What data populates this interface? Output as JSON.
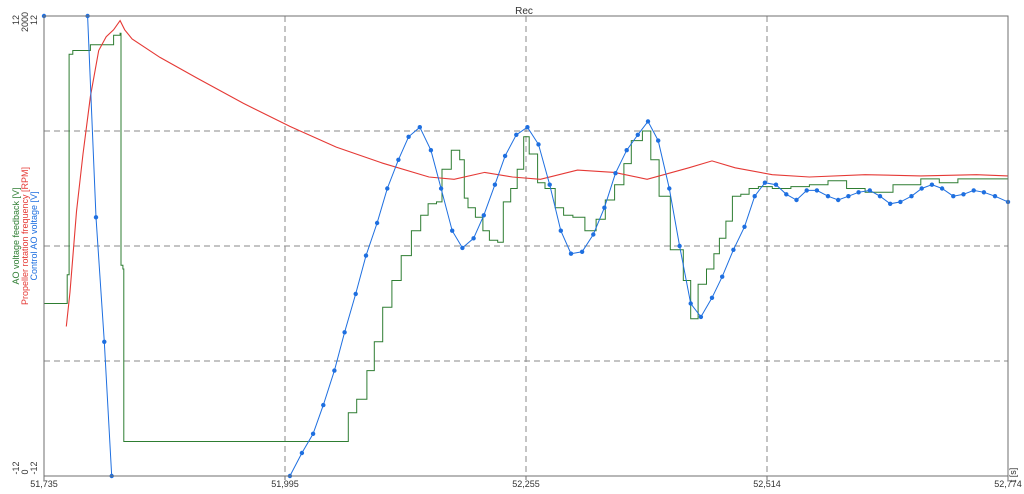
{
  "chart_data": {
    "type": "line",
    "title": "Rec",
    "xlabel": "t [s]",
    "xlim": [
      51.735,
      52.774
    ],
    "grid": true,
    "x_ticks": [
      "51,735",
      "51,995",
      "52,255",
      "52,514",
      "52,774"
    ],
    "y_axes": [
      {
        "label": "AO voltage feedback [V]",
        "color": "#2e7d32",
        "top": "12",
        "bottom": "-12",
        "range": [
          -12,
          12
        ]
      },
      {
        "label": "Propeller rotation frequency [RPM]",
        "color": "#e53935",
        "top": "2000",
        "bottom": "0",
        "range": [
          0,
          2000
        ]
      },
      {
        "label": "Control AO voltage [V]",
        "color": "#1e6fe0",
        "top": "12",
        "bottom": "-12",
        "range": [
          -12,
          12
        ]
      }
    ],
    "series": [
      {
        "name": "AO voltage feedback [V]",
        "color": "#2e7d32",
        "axis": 0,
        "step": true,
        "points": [
          [
            51.735,
            -3
          ],
          [
            51.756,
            -3
          ],
          [
            51.76,
            -1.5
          ],
          [
            51.762,
            10
          ],
          [
            51.766,
            10.2
          ],
          [
            51.785,
            10.5
          ],
          [
            51.81,
            11
          ],
          [
            51.817,
            11.1
          ],
          [
            51.818,
            -1
          ],
          [
            51.82,
            -1.2
          ],
          [
            51.821,
            -10.2
          ],
          [
            51.96,
            -10.2
          ],
          [
            51.999,
            -10.2
          ],
          [
            52.057,
            -10.2
          ],
          [
            52.063,
            -8.7
          ],
          [
            52.072,
            -8
          ],
          [
            52.083,
            -6.5
          ],
          [
            52.091,
            -5
          ],
          [
            52.1,
            -3.2
          ],
          [
            52.11,
            -1.8
          ],
          [
            52.12,
            -0.5
          ],
          [
            52.131,
            0.8
          ],
          [
            52.141,
            1.6
          ],
          [
            52.149,
            2.2
          ],
          [
            52.158,
            2.3
          ],
          [
            52.164,
            4
          ],
          [
            52.174,
            5
          ],
          [
            52.183,
            4.5
          ],
          [
            52.188,
            2.5
          ],
          [
            52.192,
            2
          ],
          [
            52.2,
            1.5
          ],
          [
            52.208,
            0.8
          ],
          [
            52.215,
            0.3
          ],
          [
            52.224,
            0.2
          ],
          [
            52.23,
            2.3
          ],
          [
            52.238,
            3
          ],
          [
            52.245,
            4
          ],
          [
            52.252,
            5.7
          ],
          [
            52.258,
            4.8
          ],
          [
            52.267,
            3.3
          ],
          [
            52.275,
            3
          ],
          [
            52.286,
            2
          ],
          [
            52.295,
            1.6
          ],
          [
            52.305,
            1.5
          ],
          [
            52.318,
            0.8
          ],
          [
            52.33,
            1.4
          ],
          [
            52.34,
            2.4
          ],
          [
            52.35,
            3.2
          ],
          [
            52.36,
            4.3
          ],
          [
            52.368,
            5.5
          ],
          [
            52.38,
            6
          ],
          [
            52.389,
            4.5
          ],
          [
            52.398,
            2.6
          ],
          [
            52.41,
            -0.2
          ],
          [
            52.424,
            -1.8
          ],
          [
            52.432,
            -3.8
          ],
          [
            52.44,
            -2
          ],
          [
            52.449,
            -1.2
          ],
          [
            52.457,
            -0.4
          ],
          [
            52.463,
            0.4
          ],
          [
            52.47,
            1.3
          ],
          [
            52.477,
            2.6
          ],
          [
            52.486,
            2.7
          ],
          [
            52.495,
            3
          ],
          [
            52.505,
            3.1
          ],
          [
            52.52,
            3
          ],
          [
            52.54,
            3.1
          ],
          [
            52.56,
            3.2
          ],
          [
            52.58,
            3.4
          ],
          [
            52.6,
            3
          ],
          [
            52.62,
            2.8
          ],
          [
            52.65,
            3.2
          ],
          [
            52.68,
            3.5
          ],
          [
            52.7,
            3.3
          ],
          [
            52.72,
            3.5
          ],
          [
            52.774,
            3.6
          ]
        ]
      },
      {
        "name": "Propeller rotation frequency [RPM]",
        "color": "#e53935",
        "axis": 1,
        "points": [
          [
            51.759,
            650
          ],
          [
            51.763,
            800
          ],
          [
            51.77,
            1150
          ],
          [
            51.777,
            1400
          ],
          [
            51.785,
            1650
          ],
          [
            51.794,
            1850
          ],
          [
            51.802,
            1910
          ],
          [
            51.81,
            1940
          ],
          [
            51.817,
            1980
          ],
          [
            51.822,
            1940
          ],
          [
            51.83,
            1900
          ],
          [
            51.86,
            1820
          ],
          [
            51.9,
            1730
          ],
          [
            51.95,
            1620
          ],
          [
            52.0,
            1520
          ],
          [
            52.05,
            1430
          ],
          [
            52.1,
            1360
          ],
          [
            52.15,
            1300
          ],
          [
            52.177,
            1290
          ],
          [
            52.21,
            1320
          ],
          [
            52.24,
            1300
          ],
          [
            52.27,
            1290
          ],
          [
            52.31,
            1330
          ],
          [
            52.35,
            1320
          ],
          [
            52.385,
            1290
          ],
          [
            52.43,
            1340
          ],
          [
            52.455,
            1370
          ],
          [
            52.48,
            1340
          ],
          [
            52.52,
            1310
          ],
          [
            52.56,
            1300
          ],
          [
            52.62,
            1310
          ],
          [
            52.68,
            1305
          ],
          [
            52.74,
            1310
          ],
          [
            52.774,
            1305
          ]
        ]
      },
      {
        "name": "Control AO voltage [V]",
        "color": "#1e6fe0",
        "axis": 2,
        "markers": true,
        "points": [
          [
            51.735,
            12
          ],
          [
            51.782,
            12
          ],
          [
            51.791,
            1.5
          ],
          [
            51.8,
            -5
          ],
          [
            51.808,
            -12
          ],
          [
            52.0,
            -12
          ],
          [
            52.013,
            -10.8
          ],
          [
            52.025,
            -9.8
          ],
          [
            52.036,
            -8.3
          ],
          [
            52.048,
            -6.5
          ],
          [
            52.059,
            -4.5
          ],
          [
            52.071,
            -2.5
          ],
          [
            52.082,
            -0.5
          ],
          [
            52.094,
            1.2
          ],
          [
            52.105,
            3
          ],
          [
            52.117,
            4.5
          ],
          [
            52.128,
            5.7
          ],
          [
            52.14,
            6.2
          ],
          [
            52.152,
            5
          ],
          [
            52.163,
            3
          ],
          [
            52.175,
            0.8
          ],
          [
            52.186,
            -0.1
          ],
          [
            52.198,
            0.4
          ],
          [
            52.209,
            1.6
          ],
          [
            52.221,
            3.2
          ],
          [
            52.232,
            4.7
          ],
          [
            52.244,
            5.8
          ],
          [
            52.256,
            6.2
          ],
          [
            52.268,
            5.3
          ],
          [
            52.28,
            3.2
          ],
          [
            52.292,
            0.8
          ],
          [
            52.303,
            -0.4
          ],
          [
            52.315,
            -0.3
          ],
          [
            52.327,
            0.6
          ],
          [
            52.339,
            2
          ],
          [
            52.351,
            3.8
          ],
          [
            52.363,
            5
          ],
          [
            52.375,
            5.8
          ],
          [
            52.386,
            6.5
          ],
          [
            52.397,
            5.5
          ],
          [
            52.409,
            3
          ],
          [
            52.42,
            0
          ],
          [
            52.432,
            -3
          ],
          [
            52.443,
            -3.7
          ],
          [
            52.455,
            -2.7
          ],
          [
            52.466,
            -1.6
          ],
          [
            52.478,
            -0.2
          ],
          [
            52.49,
            1
          ],
          [
            52.501,
            2.6
          ],
          [
            52.512,
            3.3
          ],
          [
            52.524,
            3.2
          ],
          [
            52.535,
            2.7
          ],
          [
            52.546,
            2.4
          ],
          [
            52.557,
            2.9
          ],
          [
            52.568,
            2.9
          ],
          [
            52.58,
            2.6
          ],
          [
            52.591,
            2.4
          ],
          [
            52.602,
            2.6
          ],
          [
            52.613,
            2.8
          ],
          [
            52.625,
            2.9
          ],
          [
            52.636,
            2.6
          ],
          [
            52.647,
            2.2
          ],
          [
            52.658,
            2.3
          ],
          [
            52.67,
            2.6
          ],
          [
            52.681,
            3
          ],
          [
            52.692,
            3.2
          ],
          [
            52.703,
            3
          ],
          [
            52.715,
            2.6
          ],
          [
            52.726,
            2.7
          ],
          [
            52.737,
            2.9
          ],
          [
            52.748,
            2.8
          ],
          [
            52.76,
            2.6
          ],
          [
            52.774,
            2.3
          ]
        ]
      }
    ]
  }
}
